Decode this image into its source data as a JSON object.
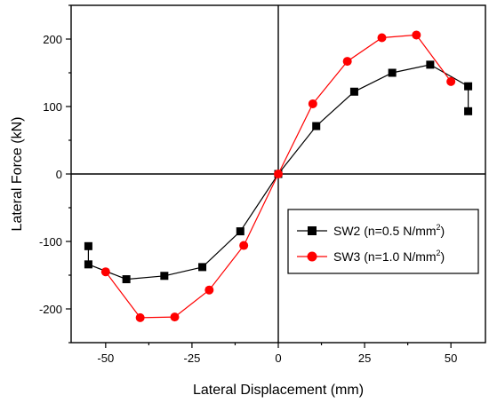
{
  "chart_data": {
    "type": "line",
    "xlabel": "Lateral Displacement (mm)",
    "ylabel": "Lateral Force (kN)",
    "xlim": [
      -60,
      60
    ],
    "ylim": [
      -250,
      250
    ],
    "xticks": [
      -50,
      -25,
      0,
      25,
      50
    ],
    "yticks": [
      -200,
      -100,
      0,
      100,
      200
    ],
    "tick_labels": {
      "x": [
        "-50",
        "-25",
        "0",
        "25",
        "50"
      ],
      "y": [
        "-200",
        "-100",
        "0",
        "100",
        "200"
      ]
    },
    "grid": false,
    "zero_lines": true,
    "legend_position": "lower-right",
    "series": [
      {
        "name": "SW2 (n=0.5 N/mm2)",
        "legend_main": "SW2 (n=0.5 N/mm",
        "legend_sup": "2",
        "legend_end": ")",
        "color": "#000000",
        "marker": "square",
        "x": [
          55,
          55,
          44,
          33,
          22,
          11,
          0,
          -11,
          -22,
          -33,
          -44,
          -55,
          -55
        ],
        "y": [
          93,
          130,
          162,
          150,
          122,
          71,
          0,
          -85,
          -138,
          -151,
          -156,
          -134,
          -107
        ]
      },
      {
        "name": "SW3 (n=1.0 N/mm2)",
        "legend_main": "SW3 (n=1.0 N/mm",
        "legend_sup": "2",
        "legend_end": ")",
        "color": "#ff0000",
        "marker": "circle",
        "x": [
          50,
          40,
          30,
          20,
          10,
          0,
          -10,
          -20,
          -30,
          -40,
          -50
        ],
        "y": [
          137,
          206,
          202,
          167,
          104,
          0,
          -106,
          -172,
          -212,
          -213,
          -145
        ]
      }
    ]
  }
}
